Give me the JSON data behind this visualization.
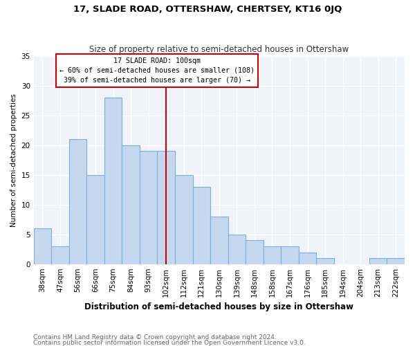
{
  "title": "17, SLADE ROAD, OTTERSHAW, CHERTSEY, KT16 0JQ",
  "subtitle": "Size of property relative to semi-detached houses in Ottershaw",
  "xlabel": "Distribution of semi-detached houses by size in Ottershaw",
  "ylabel": "Number of semi-detached properties",
  "footnote1": "Contains HM Land Registry data © Crown copyright and database right 2024.",
  "footnote2": "Contains public sector information licensed under the Open Government Licence v3.0.",
  "categories": [
    "38sqm",
    "47sqm",
    "56sqm",
    "66sqm",
    "75sqm",
    "84sqm",
    "93sqm",
    "102sqm",
    "112sqm",
    "121sqm",
    "130sqm",
    "139sqm",
    "148sqm",
    "158sqm",
    "167sqm",
    "176sqm",
    "185sqm",
    "194sqm",
    "204sqm",
    "213sqm",
    "222sqm"
  ],
  "values": [
    6,
    3,
    21,
    15,
    28,
    20,
    19,
    19,
    15,
    13,
    8,
    5,
    4,
    3,
    3,
    2,
    1,
    0,
    0,
    1,
    1
  ],
  "bar_color": "#c5d8f0",
  "bar_edge_color": "#7aaedb",
  "subject_bar_index": 7,
  "annotation_title": "17 SLADE ROAD: 100sqm",
  "annotation_line1": "← 60% of semi-detached houses are smaller (108)",
  "annotation_line2": "39% of semi-detached houses are larger (70) →",
  "annotation_box_color": "#ffffff",
  "annotation_box_edge": "#cc0000",
  "vline_color": "#cc0000",
  "ylim": [
    0,
    35
  ],
  "yticks": [
    0,
    5,
    10,
    15,
    20,
    25,
    30,
    35
  ],
  "title_fontsize": 9.5,
  "subtitle_fontsize": 8.5,
  "xlabel_fontsize": 8.5,
  "ylabel_fontsize": 7.5,
  "tick_fontsize": 7.5,
  "footnote_fontsize": 6.5
}
